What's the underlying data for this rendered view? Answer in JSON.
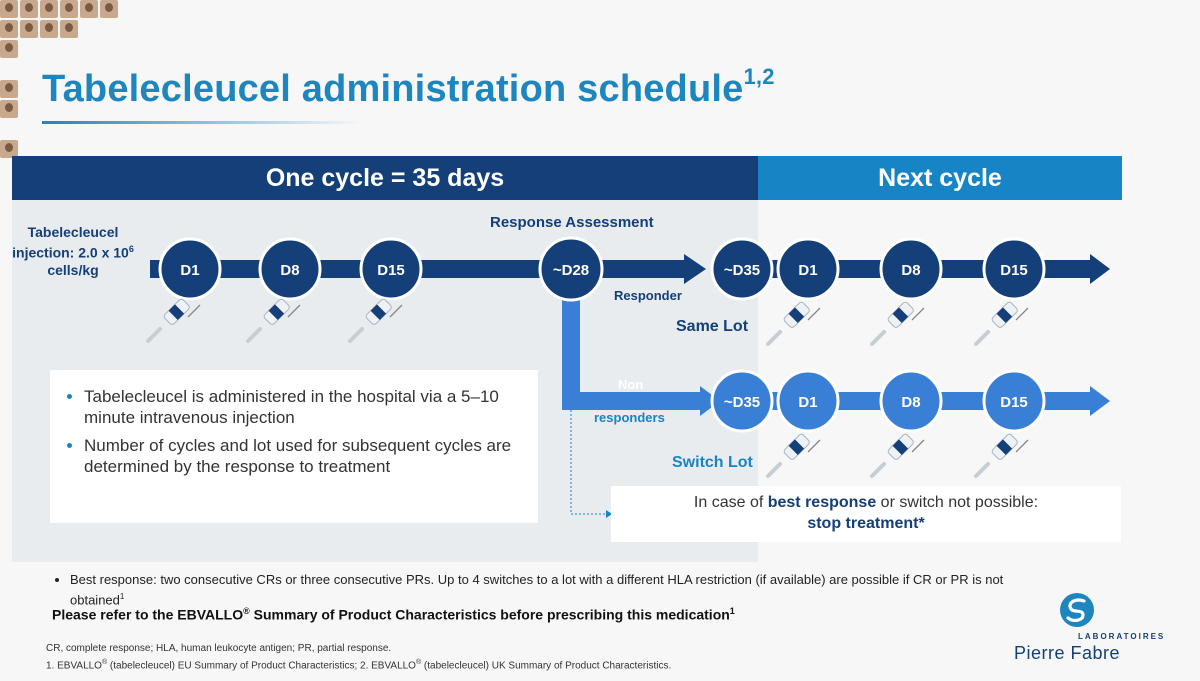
{
  "title": {
    "main": "Tabelecleucel administration schedule",
    "sup": "1,2"
  },
  "cycle_bar": {
    "label": "One cycle = 35 days"
  },
  "next_bar": {
    "label": "Next cycle"
  },
  "injection_label": {
    "line1": "Tabelecleucel",
    "line2_prefix": "injection: 2.0 x 10",
    "line2_sup": "6",
    "line3": "cells/kg"
  },
  "response_assessment": "Response Assessment",
  "first_cycle_days": [
    "D1",
    "D8",
    "D15",
    "~D28"
  ],
  "responder": {
    "label": "Responder",
    "day": "~D35",
    "next_days": [
      "D1",
      "D8",
      "D15"
    ],
    "lot_label": "Same Lot"
  },
  "non_responder": {
    "label_line1": "Non",
    "label_line2": "responders",
    "day": "~D35",
    "next_days": [
      "D1",
      "D8",
      "D15"
    ],
    "lot_label": "Switch Lot"
  },
  "bullets": [
    "Tabelecleucel is administered in the hospital via a 5–10 minute intravenous injection",
    "Number of cycles and lot used for subsequent cycles are determined by the response to treatment"
  ],
  "stop_box": {
    "prefix": "In case of ",
    "bold1": "best response",
    "middle": " or switch not possible:",
    "bold2": "stop treatment*"
  },
  "footnote": {
    "text": "Best response: two consecutive CRs or three consecutive PRs. Up to 4 switches to a lot with a different HLA restriction (if available) are possible if CR or PR is not obtained",
    "sup": "1"
  },
  "refer": {
    "text": "Please refer to the EBVALLO",
    "reg": "®",
    "rest": " Summary of Product Characteristics before prescribing this medication",
    "sup": "1"
  },
  "abbreviations": "CR, complete response; HLA, human leukocyte antigen; PR, partial response.",
  "references": {
    "r1_num": "1. ",
    "r1_name": "EBVALLO",
    "reg": "®",
    "r1_rest": " (tabelecleucel) EU Summary of Product Characteristics; 2. EBVALLO",
    "r2_rest": " (tabelecleucel) UK Summary of Product Characteristics."
  },
  "logo": {
    "line1": "LABORATOIRES",
    "line2": "Pierre Fabre"
  },
  "colors": {
    "navy": "#143f78",
    "blue": "#1785c5",
    "light_blue": "#3a7fd6",
    "title_blue": "#1d86bf"
  },
  "icons": [
    "syringe-icon",
    "pierre-fabre-logo-icon",
    "participant-thumbnail-icon"
  ]
}
